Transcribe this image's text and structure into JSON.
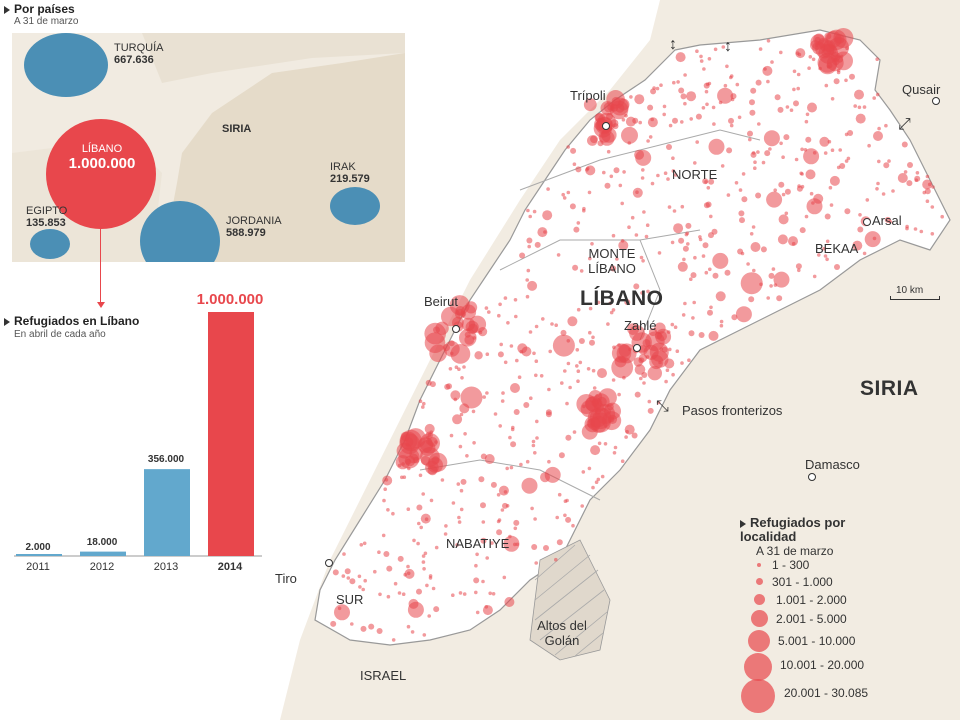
{
  "countries_section": {
    "title": "Por países",
    "subtitle": "A 31 de marzo",
    "countries": [
      {
        "name": "TURQUÍA",
        "value": "667.636"
      },
      {
        "name": "LÍBANO",
        "value": "1.000.000"
      },
      {
        "name": "IRAK",
        "value": "219.579"
      },
      {
        "name": "EGIPTO",
        "value": "135.853"
      },
      {
        "name": "JORDANIA",
        "value": "588.979"
      }
    ],
    "map_label": "SIRIA",
    "colors": {
      "circle_blue": "#4b8fb5",
      "circle_red": "#e8474c"
    }
  },
  "bar_section": {
    "title": "Refugiados en Líbano",
    "subtitle": "En abril de cada año",
    "highlight_value": "1.000.000",
    "value_labels": [
      "2.000",
      "18.000",
      "356.000"
    ],
    "colors": {
      "bar": "#62a8cd",
      "highlight_bar": "#e8474c"
    }
  },
  "chart_data": {
    "type": "bar",
    "title": "Refugiados en Líbano",
    "subtitle": "En abril de cada año",
    "categories": [
      "2011",
      "2012",
      "2013",
      "2014"
    ],
    "values": [
      2000,
      18000,
      356000,
      1000000
    ]
  },
  "map": {
    "country_label": "LÍBANO",
    "regions": [
      "NORTE",
      "MONTE LÍBANO",
      "BEKAA",
      "NABATIYE",
      "SUR"
    ],
    "cities": [
      "Trípoli",
      "Beirut",
      "Zahlé",
      "Tiro",
      "Arsal",
      "Qusair",
      "Damasco"
    ],
    "neighbors": [
      "SIRIA",
      "ISRAEL"
    ],
    "golan": "Altos del Golán",
    "crossings_label": "Pasos fronterizos",
    "scale_label": "10 km",
    "colors": {
      "land": "#f2ece2",
      "lebanon": "#ffffff",
      "dot": "#e8474c",
      "border": "#888888"
    }
  },
  "legend": {
    "title": "Refugiados por localidad",
    "subtitle": "A 31 de marzo",
    "items": [
      "1 - 300",
      "301 - 1.000",
      "1.001 - 2.000",
      "2.001 - 5.000",
      "5.001 - 10.000",
      "10.001 - 20.000",
      "20.001 - 30.085"
    ]
  }
}
